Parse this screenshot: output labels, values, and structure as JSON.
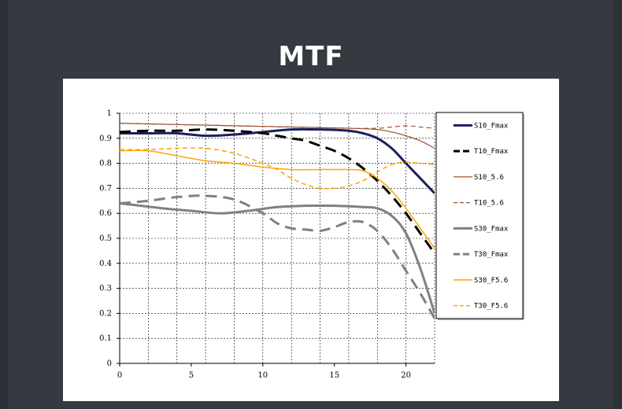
{
  "title": "MTF",
  "chart_data": {
    "type": "line",
    "title": "MTF",
    "xlim": [
      0,
      22
    ],
    "ylim": [
      0,
      1
    ],
    "x_ticks": [
      0,
      5,
      10,
      15,
      20
    ],
    "y_ticks": [
      0,
      0.1,
      0.2,
      0.3,
      0.4,
      0.5,
      0.6,
      0.7,
      0.8,
      0.9,
      1
    ],
    "grid": true,
    "legend_position": "right",
    "series": [
      {
        "name": "S10_Fmax",
        "color": "#1a1f5e",
        "dash": "solid",
        "width": 3,
        "points": [
          [
            0,
            0.92
          ],
          [
            2,
            0.92
          ],
          [
            4,
            0.92
          ],
          [
            6,
            0.91
          ],
          [
            8,
            0.915
          ],
          [
            10,
            0.925
          ],
          [
            12,
            0.935
          ],
          [
            14,
            0.935
          ],
          [
            16,
            0.93
          ],
          [
            17,
            0.92
          ],
          [
            18,
            0.9
          ],
          [
            19,
            0.86
          ],
          [
            20,
            0.8
          ],
          [
            21,
            0.74
          ],
          [
            22,
            0.68
          ]
        ]
      },
      {
        "name": "T10_Fmax",
        "color": "#000000",
        "dash": "long",
        "width": 3,
        "points": [
          [
            0,
            0.925
          ],
          [
            2,
            0.93
          ],
          [
            4,
            0.93
          ],
          [
            6,
            0.935
          ],
          [
            8,
            0.93
          ],
          [
            10,
            0.92
          ],
          [
            11,
            0.91
          ],
          [
            12,
            0.9
          ],
          [
            13,
            0.89
          ],
          [
            14,
            0.87
          ],
          [
            15,
            0.85
          ],
          [
            16,
            0.82
          ],
          [
            17,
            0.78
          ],
          [
            18,
            0.73
          ],
          [
            19,
            0.67
          ],
          [
            20,
            0.6
          ],
          [
            21,
            0.52
          ],
          [
            22,
            0.44
          ]
        ]
      },
      {
        "name": "S10_5.6",
        "color": "#a0522d",
        "dash": "solid",
        "width": 1.2,
        "points": [
          [
            0,
            0.96
          ],
          [
            4,
            0.955
          ],
          [
            8,
            0.95
          ],
          [
            12,
            0.945
          ],
          [
            16,
            0.94
          ],
          [
            18,
            0.935
          ],
          [
            19,
            0.925
          ],
          [
            20,
            0.91
          ],
          [
            21,
            0.89
          ],
          [
            22,
            0.86
          ]
        ]
      },
      {
        "name": "T10_5.6",
        "color": "#a0522d",
        "dash": "short",
        "width": 1.2,
        "points": [
          [
            0,
            0.96
          ],
          [
            4,
            0.955
          ],
          [
            8,
            0.95
          ],
          [
            12,
            0.945
          ],
          [
            16,
            0.94
          ],
          [
            18,
            0.94
          ],
          [
            19,
            0.945
          ],
          [
            20,
            0.95
          ],
          [
            21,
            0.945
          ],
          [
            22,
            0.94
          ]
        ]
      },
      {
        "name": "S30_Fmax",
        "color": "#808080",
        "dash": "solid",
        "width": 3,
        "points": [
          [
            0,
            0.64
          ],
          [
            3,
            0.62
          ],
          [
            5,
            0.61
          ],
          [
            7,
            0.6
          ],
          [
            9,
            0.61
          ],
          [
            11,
            0.625
          ],
          [
            13,
            0.63
          ],
          [
            15,
            0.63
          ],
          [
            17,
            0.625
          ],
          [
            18,
            0.62
          ],
          [
            19,
            0.59
          ],
          [
            20,
            0.52
          ],
          [
            21,
            0.38
          ],
          [
            22,
            0.2
          ]
        ]
      },
      {
        "name": "T30_Fmax",
        "color": "#808080",
        "dash": "long",
        "width": 3,
        "points": [
          [
            0,
            0.64
          ],
          [
            2,
            0.65
          ],
          [
            4,
            0.665
          ],
          [
            6,
            0.67
          ],
          [
            8,
            0.655
          ],
          [
            10,
            0.6
          ],
          [
            11,
            0.56
          ],
          [
            12,
            0.54
          ],
          [
            13,
            0.535
          ],
          [
            14,
            0.53
          ],
          [
            15,
            0.545
          ],
          [
            16,
            0.565
          ],
          [
            17,
            0.565
          ],
          [
            18,
            0.53
          ],
          [
            19,
            0.46
          ],
          [
            20,
            0.37
          ],
          [
            21,
            0.28
          ],
          [
            22,
            0.18
          ]
        ]
      },
      {
        "name": "S30_F5.6",
        "color": "#ffa500",
        "dash": "solid",
        "width": 1.5,
        "points": [
          [
            0,
            0.85
          ],
          [
            2,
            0.85
          ],
          [
            4,
            0.83
          ],
          [
            6,
            0.81
          ],
          [
            8,
            0.8
          ],
          [
            10,
            0.785
          ],
          [
            12,
            0.775
          ],
          [
            14,
            0.775
          ],
          [
            16,
            0.775
          ],
          [
            17,
            0.77
          ],
          [
            18,
            0.74
          ],
          [
            19,
            0.69
          ],
          [
            20,
            0.62
          ],
          [
            21,
            0.54
          ],
          [
            22,
            0.46
          ]
        ]
      },
      {
        "name": "T30_F5.6",
        "color": "#ffa500",
        "dash": "short",
        "width": 1.5,
        "points": [
          [
            0,
            0.855
          ],
          [
            2,
            0.855
          ],
          [
            4,
            0.86
          ],
          [
            6,
            0.86
          ],
          [
            8,
            0.84
          ],
          [
            10,
            0.8
          ],
          [
            11,
            0.775
          ],
          [
            12,
            0.74
          ],
          [
            13,
            0.715
          ],
          [
            14,
            0.7
          ],
          [
            15,
            0.7
          ],
          [
            16,
            0.71
          ],
          [
            17,
            0.73
          ],
          [
            18,
            0.765
          ],
          [
            19,
            0.795
          ],
          [
            20,
            0.805
          ],
          [
            21,
            0.8
          ],
          [
            22,
            0.795
          ]
        ]
      }
    ]
  }
}
